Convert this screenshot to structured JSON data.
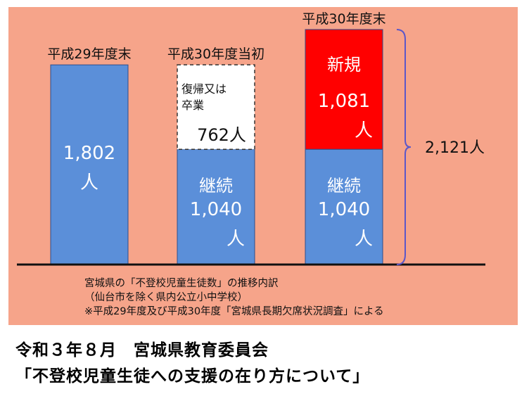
{
  "chart_data": {
    "type": "bar",
    "stacked": true,
    "unit": "人",
    "categories": [
      "平成29年度末",
      "平成30年度当初",
      "平成30年度末"
    ],
    "series": [
      {
        "name": "継続",
        "values": [
          1802,
          1040,
          1040
        ],
        "colors": [
          "#5b8fd9",
          "#5b8fd9",
          "#5b8fd9"
        ]
      },
      {
        "values": [
          0,
          762,
          0
        ],
        "colors": [
          "#ffffff",
          "#ffffff",
          "#ffffff"
        ]
      },
      {
        "name": "新規",
        "values": [
          0,
          0,
          1081
        ],
        "colors": [
          "#ff0000",
          "#ff0000",
          "#ff0000"
        ]
      }
    ],
    "data_labels": {
      "bar1": [
        "1,802",
        "人"
      ],
      "bar2_bottom": [
        "継続",
        "1,040",
        "人"
      ],
      "bar2_top_desc": [
        "復帰又は",
        "卒業"
      ],
      "bar2_top_value": "762人",
      "bar3_bottom": [
        "継続",
        "1,040",
        "人"
      ],
      "bar3_top": [
        "新規",
        "1,081",
        "人"
      ]
    },
    "total": {
      "value": 2121,
      "label": "2,121人"
    }
  },
  "captions": [
    "宮城県の「不登校児童生徒数」の推移内訳",
    "（仙台市を除く県内公立小中学校）",
    "※平成29年度及び平成30年度「宮城県長期欠席状況調査」による"
  ],
  "footer": {
    "line1": "令和３年８月　宮城県教育委員会",
    "line2": "「不登校児童生徒への支援の在り方について」"
  },
  "colors": {
    "panel_bg": "#f6a48a",
    "bar_blue": "#5b8fd9",
    "bar_red": "#ff0000",
    "brace": "#5b57c9"
  }
}
